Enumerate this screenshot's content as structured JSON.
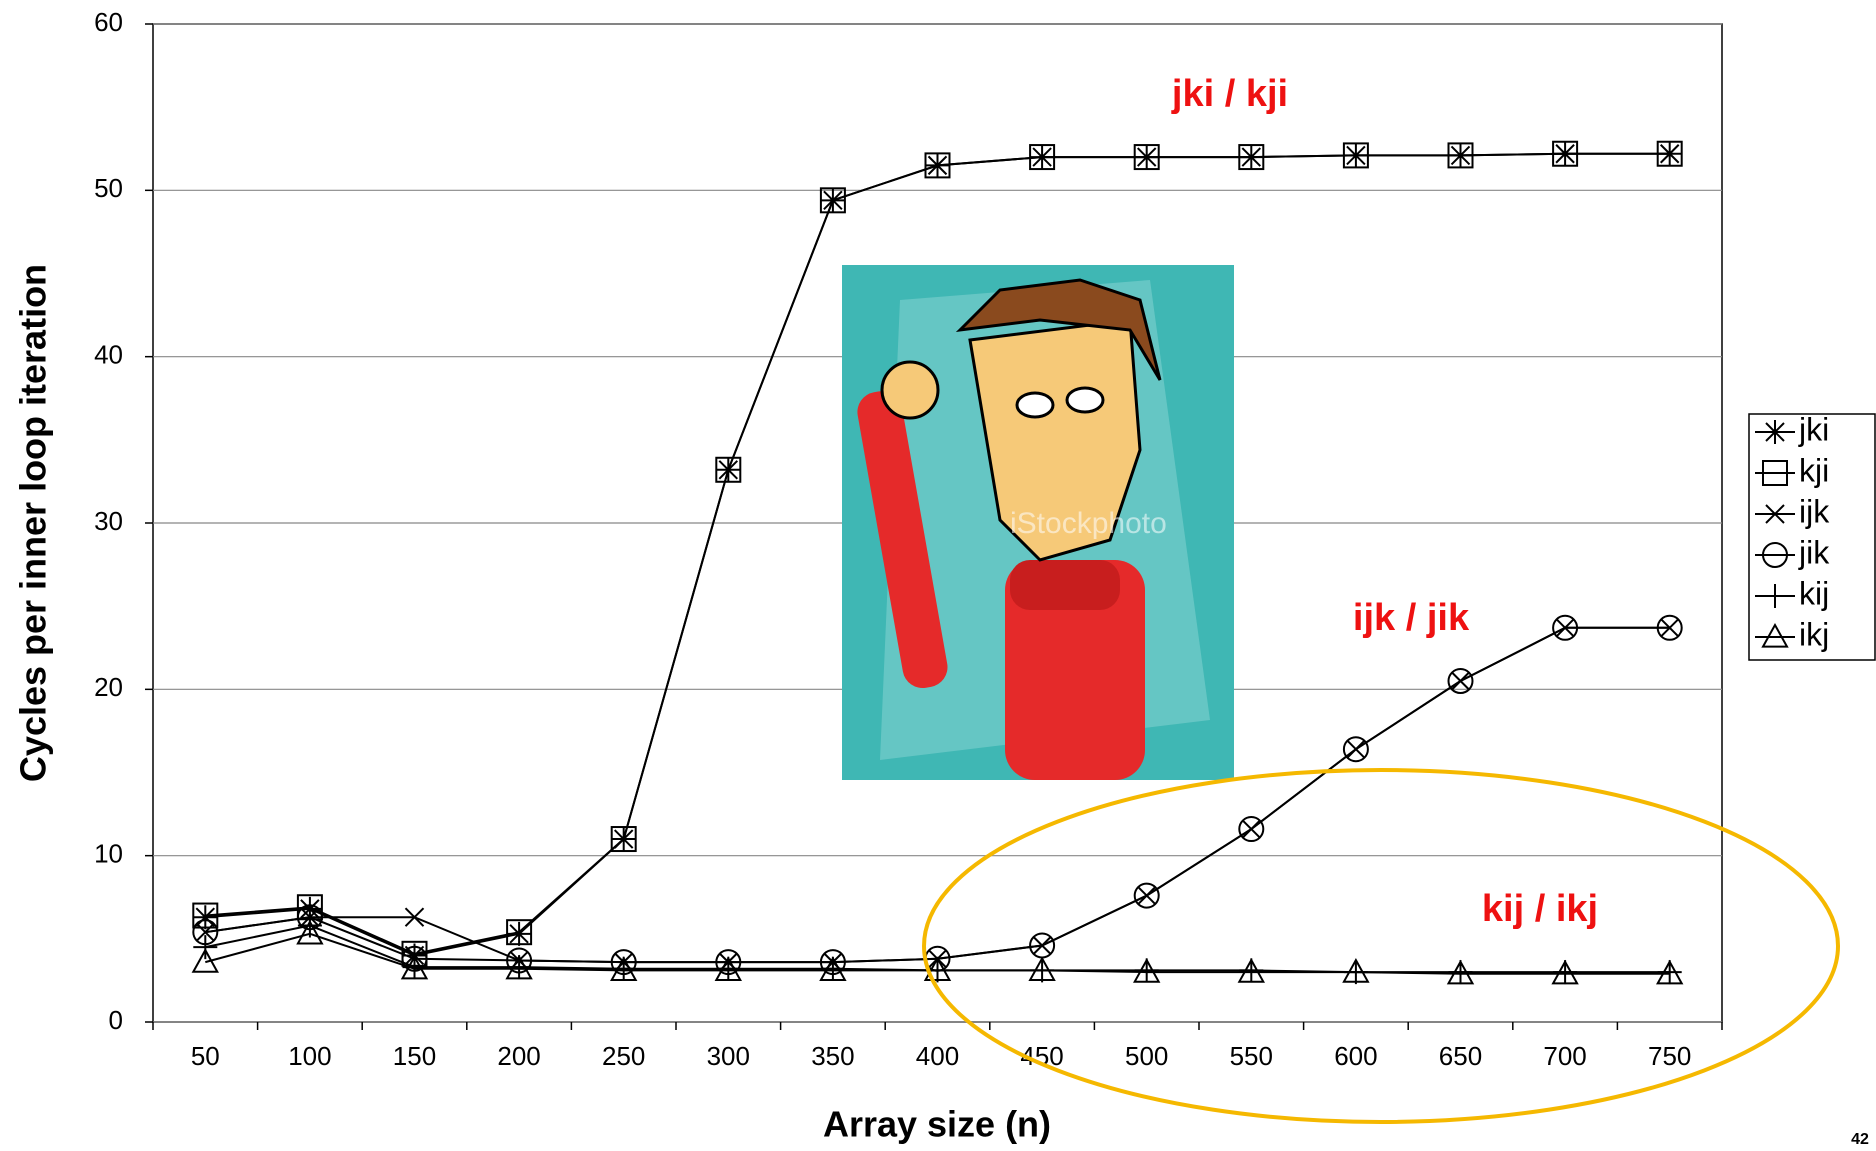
{
  "chart_data": {
    "type": "line",
    "x_label": "Array size (n)",
    "y_label": "Cycles per inner loop iteration",
    "categories": [
      "50",
      "100",
      "150",
      "200",
      "250",
      "300",
      "350",
      "400",
      "450",
      "500",
      "550",
      "600",
      "650",
      "700",
      "750"
    ],
    "series": [
      {
        "name": "jki",
        "color": "#000000",
        "marker": "asterisk",
        "values": [
          6.3,
          6.8,
          4.0,
          5.3,
          11.0,
          33.2,
          49.4,
          51.5,
          52.0,
          52.0,
          52.0,
          52.1,
          52.1,
          52.2,
          52.2
        ]
      },
      {
        "name": "kji",
        "color": "#000000",
        "marker": "square",
        "values": [
          6.4,
          6.9,
          4.1,
          5.4,
          11.0,
          33.2,
          49.4,
          51.5,
          52.0,
          52.0,
          52.0,
          52.1,
          52.1,
          52.2,
          52.2
        ]
      },
      {
        "name": "ijk",
        "color": "#000000",
        "marker": "x",
        "values": [
          5.4,
          6.3,
          6.3,
          3.7,
          3.6,
          3.6,
          3.6,
          3.8,
          4.6,
          7.6,
          11.6,
          16.4,
          20.5,
          23.7,
          23.7
        ]
      },
      {
        "name": "jik",
        "color": "#000000",
        "marker": "circle",
        "values": [
          5.4,
          6.3,
          3.8,
          3.7,
          3.6,
          3.6,
          3.6,
          3.8,
          4.6,
          7.6,
          11.6,
          16.4,
          20.5,
          23.7,
          23.7
        ]
      },
      {
        "name": "kij",
        "color": "#000000",
        "marker": "plus",
        "values": [
          4.5,
          5.8,
          3.3,
          3.3,
          3.2,
          3.2,
          3.2,
          3.1,
          3.1,
          3.1,
          3.1,
          3.0,
          3.0,
          3.0,
          3.0
        ]
      },
      {
        "name": "ikj",
        "color": "#000000",
        "marker": "triangle",
        "values": [
          3.6,
          5.3,
          3.2,
          3.2,
          3.1,
          3.1,
          3.1,
          3.1,
          3.1,
          3.0,
          3.0,
          3.0,
          2.9,
          2.9,
          2.9
        ]
      }
    ],
    "ylim": [
      0,
      60
    ],
    "yticks": [
      0,
      10,
      20,
      30,
      40,
      50,
      60
    ],
    "grid": true,
    "annotations": [
      "jki / kji",
      "ijk / jik",
      "kij / ikj"
    ],
    "watermark": "iStockphoto",
    "slide_number": "42"
  }
}
